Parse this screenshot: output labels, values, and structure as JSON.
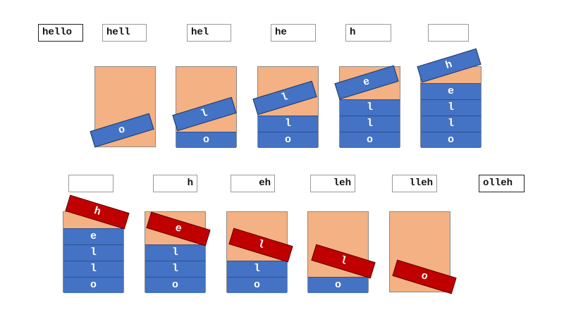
{
  "push_row": {
    "labels": [
      "hello",
      "hell",
      "hel",
      "he",
      "h",
      ""
    ],
    "stacks": [
      {
        "stacked": [],
        "moving": "o"
      },
      {
        "stacked": [
          "o"
        ],
        "moving": "l"
      },
      {
        "stacked": [
          "l",
          "o"
        ],
        "moving": "l"
      },
      {
        "stacked": [
          "l",
          "l",
          "o"
        ],
        "moving": "e"
      },
      {
        "stacked": [
          "e",
          "l",
          "l",
          "o"
        ],
        "moving": "h"
      }
    ]
  },
  "pop_row": {
    "labels": [
      "",
      "h",
      "eh",
      "leh",
      "lleh",
      "olleh"
    ],
    "stacks": [
      {
        "stacked": [
          "e",
          "l",
          "l",
          "o"
        ],
        "moving": "h"
      },
      {
        "stacked": [
          "l",
          "l",
          "o"
        ],
        "moving": "e"
      },
      {
        "stacked": [
          "l",
          "o"
        ],
        "moving": "l"
      },
      {
        "stacked": [
          "o"
        ],
        "moving": "l"
      },
      {
        "stacked": [],
        "moving": "o"
      }
    ]
  },
  "colors": {
    "container": "#f4b183",
    "push_block": "#4472c4",
    "pop_block": "#c00000"
  }
}
